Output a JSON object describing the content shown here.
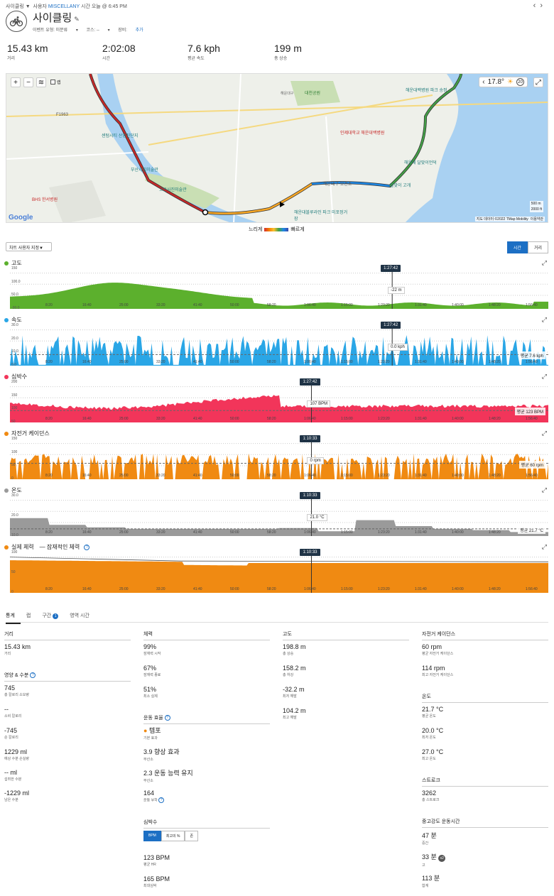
{
  "header": {
    "sport": "사이클링",
    "owner_prefix": "사용자",
    "owner": "MISCELLANY",
    "time_prefix": "시간",
    "time": "오늘 @ 6:45 PM",
    "title": "사이클링",
    "event_type": "이벤트 유형: 미분류",
    "course": "코스: --",
    "gear_label": "장비:",
    "gear_add": "추가"
  },
  "summary": [
    {
      "value": "15.43 km",
      "label": "거리"
    },
    {
      "value": "2:02:08",
      "label": "시간"
    },
    {
      "value": "7.6 kph",
      "label": "평균 속도"
    },
    {
      "value": "199 m",
      "label": "총 상승"
    }
  ],
  "map": {
    "layer_label": "랩",
    "temp": "17.8°",
    "wind": "20",
    "scale_m": "500 m",
    "scale_ft": "2000 ft",
    "attribution": "지도 데이터 ©2022 TMap Mobility",
    "terms": "이용약관",
    "google": "Google",
    "places": [
      "대천공원",
      "해운대구",
      "인제대학교 해운대백병원",
      "해운대백병원 파크 송정",
      "해운대구 보건소",
      "센텀시티 산업진단지",
      "부산시립미술관",
      "고은사진미술관",
      "BHS 한서병원",
      "F1963",
      "해운대블루라인 파크 미포정거장",
      "달맞이 고개",
      "해운대 달맞이언덕"
    ]
  },
  "legend": {
    "slow": "느리게",
    "fast": "빠르게"
  },
  "controls": {
    "dropdown": "차트 사용자 지정",
    "toggle_time": "시간",
    "toggle_distance": "거리"
  },
  "charts": {
    "elev": {
      "title": "고도",
      "color": "#5cb02d",
      "y": [
        "150",
        "100.0",
        "50.0",
        "-30.0"
      ],
      "cursor_time": "1:27:42",
      "cursor_value": "-22 m"
    },
    "speed": {
      "title": "속도",
      "color": "#2aa6e6",
      "y": [
        "30.0",
        "20.0",
        "10.0",
        "0.0"
      ],
      "cursor_time": "1:27:42",
      "cursor_value": "0.0 kph",
      "avg": "평균 7.6 kph"
    },
    "hr": {
      "title": "심박수",
      "color": "#f2355a",
      "y": [
        "200",
        "150",
        "100",
        "50"
      ],
      "cursor_time": "1:27:42",
      "cursor_value": "107 BPM",
      "avg": "평균 123 BPM"
    },
    "cad": {
      "title": "자전거 케이던스",
      "color": "#f08a12",
      "y": [
        "150",
        "100",
        "50",
        "0"
      ],
      "cursor_time": "1:10:33",
      "cursor_value": "0 rpm",
      "avg": "평균 60 rpm"
    },
    "temp": {
      "title": "온도",
      "color": "#9a9a9a",
      "y": [
        "30.0",
        "20.0",
        "10.0"
      ],
      "cursor_time": "1:10:33",
      "cursor_value": "21.0 °C",
      "avg": "평균 21.7 °C"
    },
    "stamina": {
      "title": "실제 체력",
      "title2": "잠재적인 체력",
      "color": "#f08a12",
      "y": [
        "100",
        "50",
        "0"
      ],
      "cursor_time": "1:10:33"
    }
  },
  "xticks": [
    "8:20",
    "16:40",
    "25:00",
    "33:20",
    "41:40",
    "50:00",
    "58:20",
    "1:06:40",
    "1:15:00",
    "1:23:20",
    "1:31:40",
    "1:40:00",
    "1:48:20",
    "1:56:40"
  ],
  "tabs": {
    "stats": "통계",
    "laps": "랩",
    "intervals": "구간",
    "intervals_count": "1",
    "zone_time": "영역 시간"
  },
  "col1": {
    "distance_title": "거리",
    "distance": {
      "value": "15.43 km",
      "label": "거리"
    },
    "nutrition_title": "영양 & 수분",
    "items": [
      {
        "value": "745",
        "label": "총 칼로리 소모량"
      },
      {
        "value": "--",
        "label": "소비 칼로리"
      },
      {
        "value": "-745",
        "label": "순 칼로리"
      },
      {
        "value": "1229 ml",
        "label": "예상 수분 손실량"
      },
      {
        "value": "-- ml",
        "label": "섭취한 수분"
      },
      {
        "value": "-1229 ml",
        "label": "남은 수분"
      }
    ]
  },
  "col2": {
    "stamina_title": "체력",
    "stamina": [
      {
        "value": "99%",
        "label": "잠재력 시작"
      },
      {
        "value": "67%",
        "label": "잠재력 종료"
      },
      {
        "value": "51%",
        "label": "최소 실제"
      }
    ],
    "effect_title": "운동 효율",
    "effect": [
      {
        "value": "템포",
        "label": "기본 효과"
      },
      {
        "value": "3.9 향상 효과",
        "label": "무산소"
      },
      {
        "value": "2.3 운동 능력 유지",
        "label": "무산소"
      },
      {
        "value": "164",
        "label": "운동 부하"
      }
    ],
    "hr_title": "심박수",
    "hr_tabs": [
      "BPM",
      "최고의 %",
      "존"
    ],
    "hr": [
      {
        "value": "123 BPM",
        "label": "평균 HR"
      },
      {
        "value": "165 BPM",
        "label": "최대심박"
      }
    ]
  },
  "col3": {
    "title": "고도",
    "items": [
      {
        "value": "198.8 m",
        "label": "총 상승"
      },
      {
        "value": "158.2 m",
        "label": "총 하강"
      },
      {
        "value": "-32.2 m",
        "label": "최저 해발"
      },
      {
        "value": "104.2 m",
        "label": "최고 해발"
      }
    ]
  },
  "col4": {
    "cad_title": "자전거 케이던스",
    "cad": [
      {
        "value": "60 rpm",
        "label": "평균 자전거 케이던스"
      },
      {
        "value": "114 rpm",
        "label": "최고 자전거 케이던스"
      }
    ],
    "temp_title": "온도",
    "temp": [
      {
        "value": "21.7 °C",
        "label": "평균 온도"
      },
      {
        "value": "20.0 °C",
        "label": "최저 온도"
      },
      {
        "value": "27.0 °C",
        "label": "최고 온도"
      }
    ],
    "stroke_title": "스트로크",
    "stroke": [
      {
        "value": "3262",
        "label": "총 스트로크"
      }
    ],
    "intensity_title": "중고강도 운동시간",
    "intensity": [
      {
        "value": "47 분",
        "label": "중간"
      },
      {
        "value": "33 분",
        "label": "고",
        "badge": "x2"
      },
      {
        "value": "113 분",
        "label": "합계"
      }
    ]
  }
}
